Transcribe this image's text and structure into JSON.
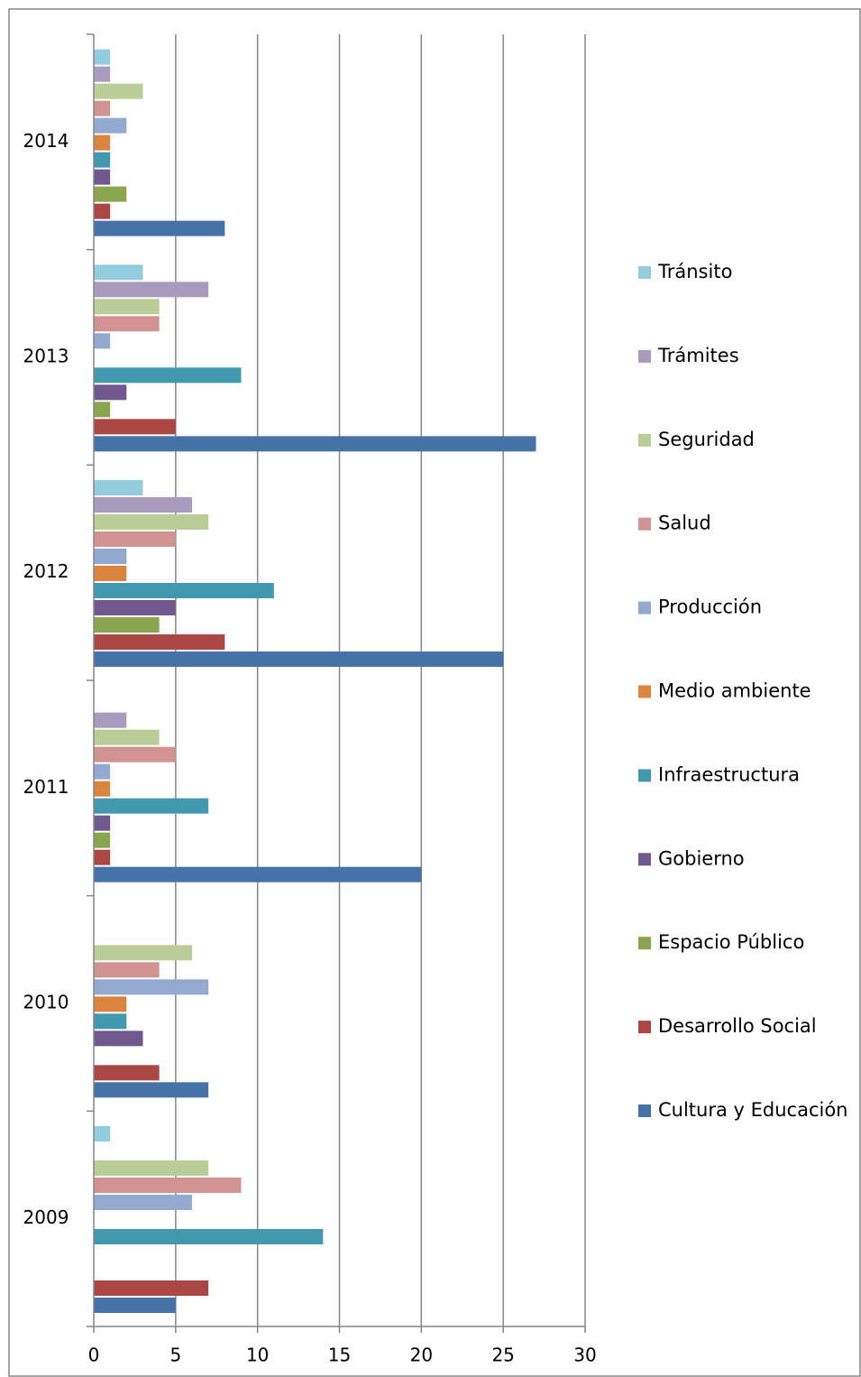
{
  "chart_data": {
    "type": "hbar",
    "categories": [
      "2009",
      "2010",
      "2011",
      "2012",
      "2013",
      "2014"
    ],
    "series": [
      {
        "name": "Cultura y Educación",
        "color": "#4572a7",
        "values": [
          5,
          7,
          20,
          25,
          27,
          8
        ]
      },
      {
        "name": "Desarrollo Social",
        "color": "#aa4643",
        "values": [
          7,
          4,
          1,
          8,
          5,
          1
        ]
      },
      {
        "name": "Espacio Público",
        "color": "#89a54e",
        "values": [
          0,
          0,
          1,
          4,
          1,
          2
        ]
      },
      {
        "name": "Gobierno",
        "color": "#71588f",
        "values": [
          0,
          3,
          1,
          5,
          2,
          1
        ]
      },
      {
        "name": "Infraestructura",
        "color": "#4198af",
        "values": [
          14,
          2,
          7,
          11,
          9,
          1
        ]
      },
      {
        "name": "Medio ambiente",
        "color": "#db843d",
        "values": [
          0,
          2,
          1,
          2,
          0,
          1
        ]
      },
      {
        "name": "Producción",
        "color": "#93a9cf",
        "values": [
          6,
          7,
          1,
          2,
          1,
          2
        ]
      },
      {
        "name": "Salud",
        "color": "#d19392",
        "values": [
          9,
          4,
          5,
          5,
          4,
          1
        ]
      },
      {
        "name": "Seguridad",
        "color": "#b9cd96",
        "values": [
          7,
          6,
          4,
          7,
          4,
          3
        ]
      },
      {
        "name": "Trámites",
        "color": "#a99bbd",
        "values": [
          0,
          0,
          2,
          6,
          7,
          1
        ]
      },
      {
        "name": "Tránsito",
        "color": "#93cddd",
        "values": [
          1,
          0,
          0,
          3,
          3,
          1
        ]
      }
    ],
    "xlim": [
      0,
      30
    ],
    "xticks": [
      0,
      5,
      10,
      15,
      20,
      25,
      30
    ],
    "grid": true,
    "legend": "right"
  }
}
